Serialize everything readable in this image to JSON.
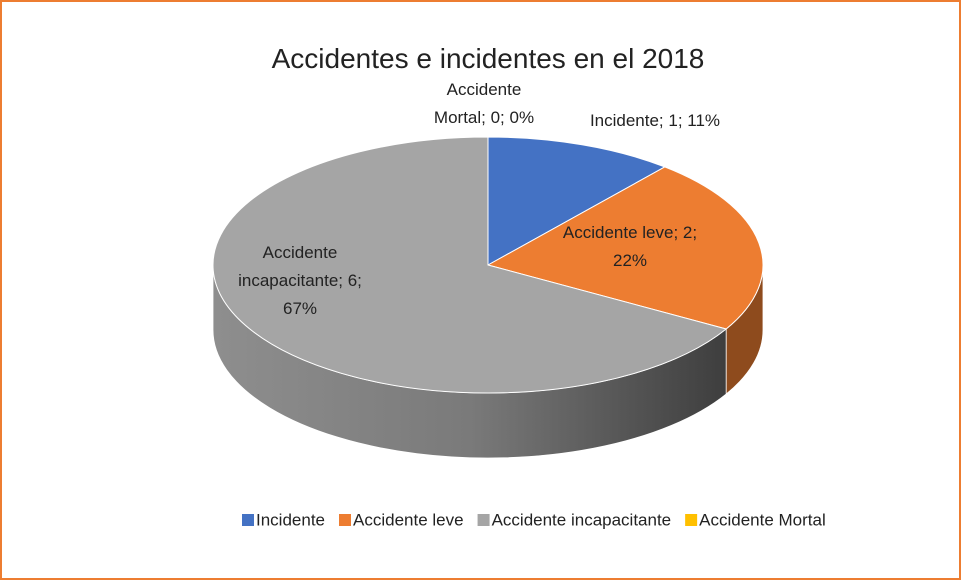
{
  "chart_data": {
    "type": "pie3d",
    "title": "Accidentes e incidentes en el 2018",
    "categories": [
      "Incidente",
      "Accidente leve",
      "Accidente incapacitante",
      "Accidente Mortal"
    ],
    "values": [
      1,
      2,
      6,
      0
    ],
    "value_labels": [
      "Incidente; 1; 11%",
      "Accidente leve; 2;\n22%",
      "Accidente\nincapacitante; 6;\n67%",
      "Accidente\nMortal; 0; 0%"
    ],
    "colors": [
      "#4472C4",
      "#ED7D31",
      "#A5A5A5",
      "#FFC000"
    ],
    "legend": "bottom"
  }
}
